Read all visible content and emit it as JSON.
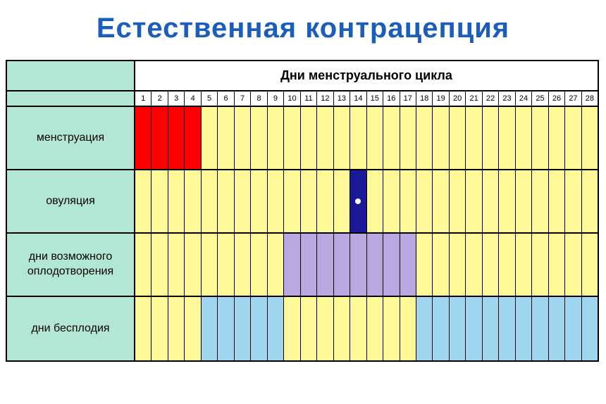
{
  "title": "Естественная контрацепция",
  "header_title": "Дни менструального цикла",
  "num_days": 28,
  "colors": {
    "label_bg": "#b2e6d7",
    "default_cell": "#fff898",
    "menstruation": "#ff0000",
    "ovulation": "#1a1a99",
    "fertile": "#b9a7e0",
    "infertile": "#9fd5ee",
    "title_color": "#1a5dbd",
    "border": "#000000",
    "dot": "#ffffff"
  },
  "rows": [
    {
      "label": "менструация",
      "cells": [
        {
          "day": 1,
          "fill": "menstruation"
        },
        {
          "day": 2,
          "fill": "menstruation"
        },
        {
          "day": 3,
          "fill": "menstruation"
        },
        {
          "day": 4,
          "fill": "menstruation"
        },
        {
          "day": 5,
          "fill": "default_cell"
        },
        {
          "day": 6,
          "fill": "default_cell"
        },
        {
          "day": 7,
          "fill": "default_cell"
        },
        {
          "day": 8,
          "fill": "default_cell"
        },
        {
          "day": 9,
          "fill": "default_cell"
        },
        {
          "day": 10,
          "fill": "default_cell"
        },
        {
          "day": 11,
          "fill": "default_cell"
        },
        {
          "day": 12,
          "fill": "default_cell"
        },
        {
          "day": 13,
          "fill": "default_cell"
        },
        {
          "day": 14,
          "fill": "default_cell"
        },
        {
          "day": 15,
          "fill": "default_cell"
        },
        {
          "day": 16,
          "fill": "default_cell"
        },
        {
          "day": 17,
          "fill": "default_cell"
        },
        {
          "day": 18,
          "fill": "default_cell"
        },
        {
          "day": 19,
          "fill": "default_cell"
        },
        {
          "day": 20,
          "fill": "default_cell"
        },
        {
          "day": 21,
          "fill": "default_cell"
        },
        {
          "day": 22,
          "fill": "default_cell"
        },
        {
          "day": 23,
          "fill": "default_cell"
        },
        {
          "day": 24,
          "fill": "default_cell"
        },
        {
          "day": 25,
          "fill": "default_cell"
        },
        {
          "day": 26,
          "fill": "default_cell"
        },
        {
          "day": 27,
          "fill": "default_cell"
        },
        {
          "day": 28,
          "fill": "default_cell"
        }
      ]
    },
    {
      "label": "овуляция",
      "cells": [
        {
          "day": 1,
          "fill": "default_cell"
        },
        {
          "day": 2,
          "fill": "default_cell"
        },
        {
          "day": 3,
          "fill": "default_cell"
        },
        {
          "day": 4,
          "fill": "default_cell"
        },
        {
          "day": 5,
          "fill": "default_cell"
        },
        {
          "day": 6,
          "fill": "default_cell"
        },
        {
          "day": 7,
          "fill": "default_cell"
        },
        {
          "day": 8,
          "fill": "default_cell"
        },
        {
          "day": 9,
          "fill": "default_cell"
        },
        {
          "day": 10,
          "fill": "default_cell"
        },
        {
          "day": 11,
          "fill": "default_cell"
        },
        {
          "day": 12,
          "fill": "default_cell"
        },
        {
          "day": 13,
          "fill": "default_cell"
        },
        {
          "day": 14,
          "fill": "ovulation",
          "dot": true
        },
        {
          "day": 15,
          "fill": "default_cell"
        },
        {
          "day": 16,
          "fill": "default_cell"
        },
        {
          "day": 17,
          "fill": "default_cell"
        },
        {
          "day": 18,
          "fill": "default_cell"
        },
        {
          "day": 19,
          "fill": "default_cell"
        },
        {
          "day": 20,
          "fill": "default_cell"
        },
        {
          "day": 21,
          "fill": "default_cell"
        },
        {
          "day": 22,
          "fill": "default_cell"
        },
        {
          "day": 23,
          "fill": "default_cell"
        },
        {
          "day": 24,
          "fill": "default_cell"
        },
        {
          "day": 25,
          "fill": "default_cell"
        },
        {
          "day": 26,
          "fill": "default_cell"
        },
        {
          "day": 27,
          "fill": "default_cell"
        },
        {
          "day": 28,
          "fill": "default_cell"
        }
      ]
    },
    {
      "label": "дни возможного оплодотворения",
      "cells": [
        {
          "day": 1,
          "fill": "default_cell"
        },
        {
          "day": 2,
          "fill": "default_cell"
        },
        {
          "day": 3,
          "fill": "default_cell"
        },
        {
          "day": 4,
          "fill": "default_cell"
        },
        {
          "day": 5,
          "fill": "default_cell"
        },
        {
          "day": 6,
          "fill": "default_cell"
        },
        {
          "day": 7,
          "fill": "default_cell"
        },
        {
          "day": 8,
          "fill": "default_cell"
        },
        {
          "day": 9,
          "fill": "default_cell"
        },
        {
          "day": 10,
          "fill": "fertile"
        },
        {
          "day": 11,
          "fill": "fertile"
        },
        {
          "day": 12,
          "fill": "fertile"
        },
        {
          "day": 13,
          "fill": "fertile"
        },
        {
          "day": 14,
          "fill": "fertile"
        },
        {
          "day": 15,
          "fill": "fertile"
        },
        {
          "day": 16,
          "fill": "fertile"
        },
        {
          "day": 17,
          "fill": "fertile"
        },
        {
          "day": 18,
          "fill": "default_cell"
        },
        {
          "day": 19,
          "fill": "default_cell"
        },
        {
          "day": 20,
          "fill": "default_cell"
        },
        {
          "day": 21,
          "fill": "default_cell"
        },
        {
          "day": 22,
          "fill": "default_cell"
        },
        {
          "day": 23,
          "fill": "default_cell"
        },
        {
          "day": 24,
          "fill": "default_cell"
        },
        {
          "day": 25,
          "fill": "default_cell"
        },
        {
          "day": 26,
          "fill": "default_cell"
        },
        {
          "day": 27,
          "fill": "default_cell"
        },
        {
          "day": 28,
          "fill": "default_cell"
        }
      ]
    },
    {
      "label": "дни бесплодия",
      "cells": [
        {
          "day": 1,
          "fill": "default_cell"
        },
        {
          "day": 2,
          "fill": "default_cell"
        },
        {
          "day": 3,
          "fill": "default_cell"
        },
        {
          "day": 4,
          "fill": "default_cell"
        },
        {
          "day": 5,
          "fill": "infertile"
        },
        {
          "day": 6,
          "fill": "infertile"
        },
        {
          "day": 7,
          "fill": "infertile"
        },
        {
          "day": 8,
          "fill": "infertile"
        },
        {
          "day": 9,
          "fill": "infertile"
        },
        {
          "day": 10,
          "fill": "default_cell"
        },
        {
          "day": 11,
          "fill": "default_cell"
        },
        {
          "day": 12,
          "fill": "default_cell"
        },
        {
          "day": 13,
          "fill": "default_cell"
        },
        {
          "day": 14,
          "fill": "default_cell"
        },
        {
          "day": 15,
          "fill": "default_cell"
        },
        {
          "day": 16,
          "fill": "default_cell"
        },
        {
          "day": 17,
          "fill": "default_cell"
        },
        {
          "day": 18,
          "fill": "infertile"
        },
        {
          "day": 19,
          "fill": "infertile"
        },
        {
          "day": 20,
          "fill": "infertile"
        },
        {
          "day": 21,
          "fill": "infertile"
        },
        {
          "day": 22,
          "fill": "infertile"
        },
        {
          "day": 23,
          "fill": "infertile"
        },
        {
          "day": 24,
          "fill": "infertile"
        },
        {
          "day": 25,
          "fill": "infertile"
        },
        {
          "day": 26,
          "fill": "infertile"
        },
        {
          "day": 27,
          "fill": "infertile"
        },
        {
          "day": 28,
          "fill": "infertile"
        }
      ]
    }
  ]
}
